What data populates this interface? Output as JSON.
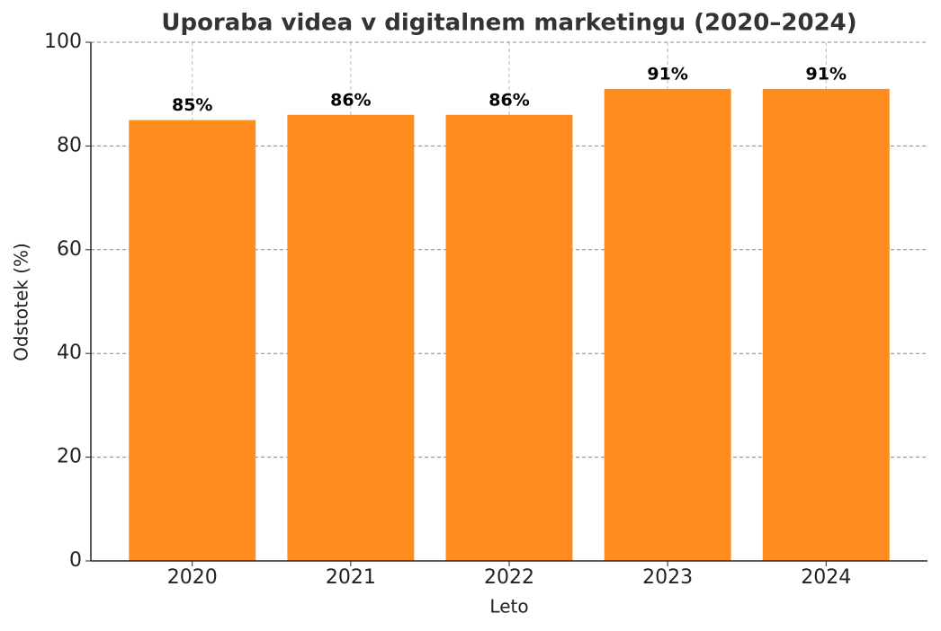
{
  "chart_data": {
    "type": "bar",
    "title": "Uporaba videa v digitalnem marketingu (2020–2024)",
    "x_label": "Leto",
    "y_label": "Odstotek (%)",
    "categories": [
      "2020",
      "2021",
      "2022",
      "2023",
      "2024"
    ],
    "values": [
      85,
      86,
      86,
      91,
      91
    ],
    "value_labels": [
      "85%",
      "86%",
      "86%",
      "91%",
      "91%"
    ],
    "color": "#ff8c1e",
    "ylim": [
      0,
      100
    ],
    "yticks": [
      0,
      20,
      40,
      60,
      80,
      100
    ],
    "grid": true
  }
}
